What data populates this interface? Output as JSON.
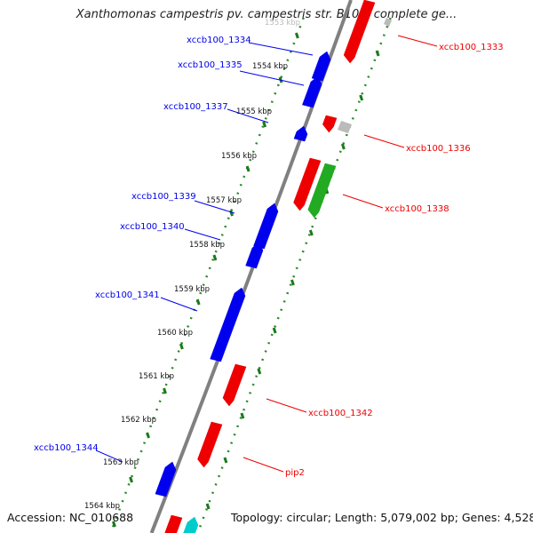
{
  "title": "Xanthomonas campestris pv. campestris str. B100, complete ge...",
  "footer": {
    "accession": "Accession: NC_010688",
    "summary": "Topology: circular; Length: 5,079,002 bp; Genes: 4,528"
  },
  "colors": {
    "left_gene": "#0000ee",
    "right_gene": "#ee0000",
    "rna_gene": "#22aa22",
    "pseudo_gene": "#bbbbbb",
    "teal_gene": "#00cccc",
    "backbone": "#808080",
    "tick_dots": "#2a8a2a",
    "tick_dash": "#1a7a1a"
  },
  "ticks": [
    "1553 kbp",
    "1554 kbp",
    "1555 kbp",
    "1556 kbp",
    "1557 kbp",
    "1558 kbp",
    "1559 kbp",
    "1560 kbp",
    "1561 kbp",
    "1562 kbp",
    "1563 kbp",
    "1564 kbp"
  ],
  "left_labels": [
    "xccb100_1334",
    "xccb100_1335",
    "xccb100_1337",
    "xccb100_1339",
    "xccb100_1340",
    "xccb100_1341",
    "xccb100_1344"
  ],
  "right_labels": [
    "xccb100_1333",
    "xccb100_1336",
    "xccb100_1338",
    "xccb100_1342",
    "pip2"
  ]
}
